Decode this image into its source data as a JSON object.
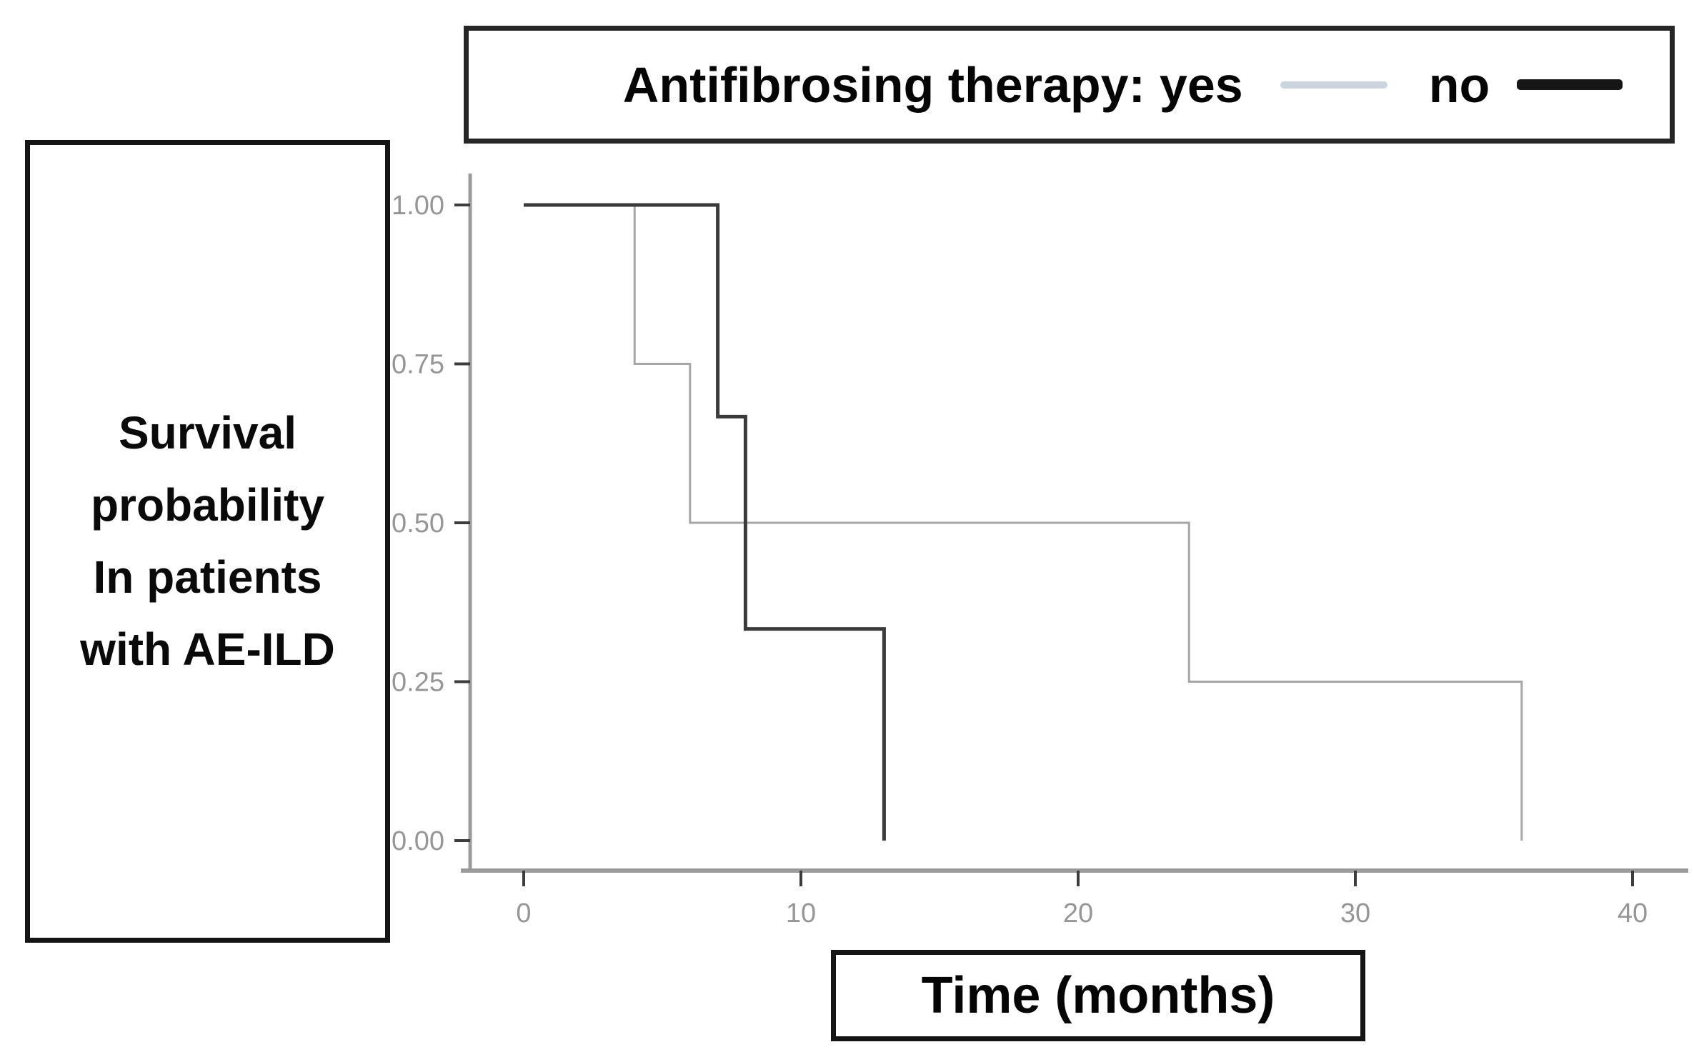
{
  "figure": {
    "legend": {
      "title": "Antifibrosing therapy:",
      "items": [
        {
          "label": "yes",
          "color": "#ccd4de"
        },
        {
          "label": "no",
          "color": "#161616"
        }
      ]
    },
    "y_axis_box": {
      "lines": [
        "Survival",
        "probability",
        "In patients",
        "with AE-ILD"
      ]
    },
    "x_axis_box": {
      "label": "Time (months)"
    }
  },
  "chart_data": {
    "type": "line",
    "subtype": "kaplan_meier_step",
    "title": "",
    "xlabel": "Time (months)",
    "ylabel": "Survival probability In patients with AE-ILD",
    "xlim": [
      0,
      42
    ],
    "ylim": [
      0,
      1
    ],
    "x_ticks": [
      0,
      10,
      20,
      30,
      40
    ],
    "y_ticks": [
      0,
      0.25,
      0.5,
      0.75,
      1
    ],
    "y_tick_labels": [
      "0.00",
      "0.25",
      "0.50",
      "0.75",
      "1.00"
    ],
    "grid": false,
    "legend_position": "top",
    "axis_color": "#9b9b9b",
    "tick_color": "#3c3c3c",
    "tick_label_color": "#969696",
    "series": [
      {
        "name": "yes",
        "color": "#a6a6a6",
        "stroke_width": 3,
        "points": [
          [
            0,
            1.0
          ],
          [
            4,
            1.0
          ],
          [
            4,
            0.75
          ],
          [
            6,
            0.75
          ],
          [
            6,
            0.5
          ],
          [
            24,
            0.5
          ],
          [
            24,
            0.25
          ],
          [
            36,
            0.25
          ],
          [
            36,
            0.0
          ]
        ]
      },
      {
        "name": "no",
        "color": "#3b3b3b",
        "stroke_width": 5,
        "points": [
          [
            0,
            1.0
          ],
          [
            7,
            1.0
          ],
          [
            7,
            0.667
          ],
          [
            8,
            0.667
          ],
          [
            8,
            0.333
          ],
          [
            13,
            0.333
          ],
          [
            13,
            0.0
          ]
        ]
      }
    ]
  }
}
